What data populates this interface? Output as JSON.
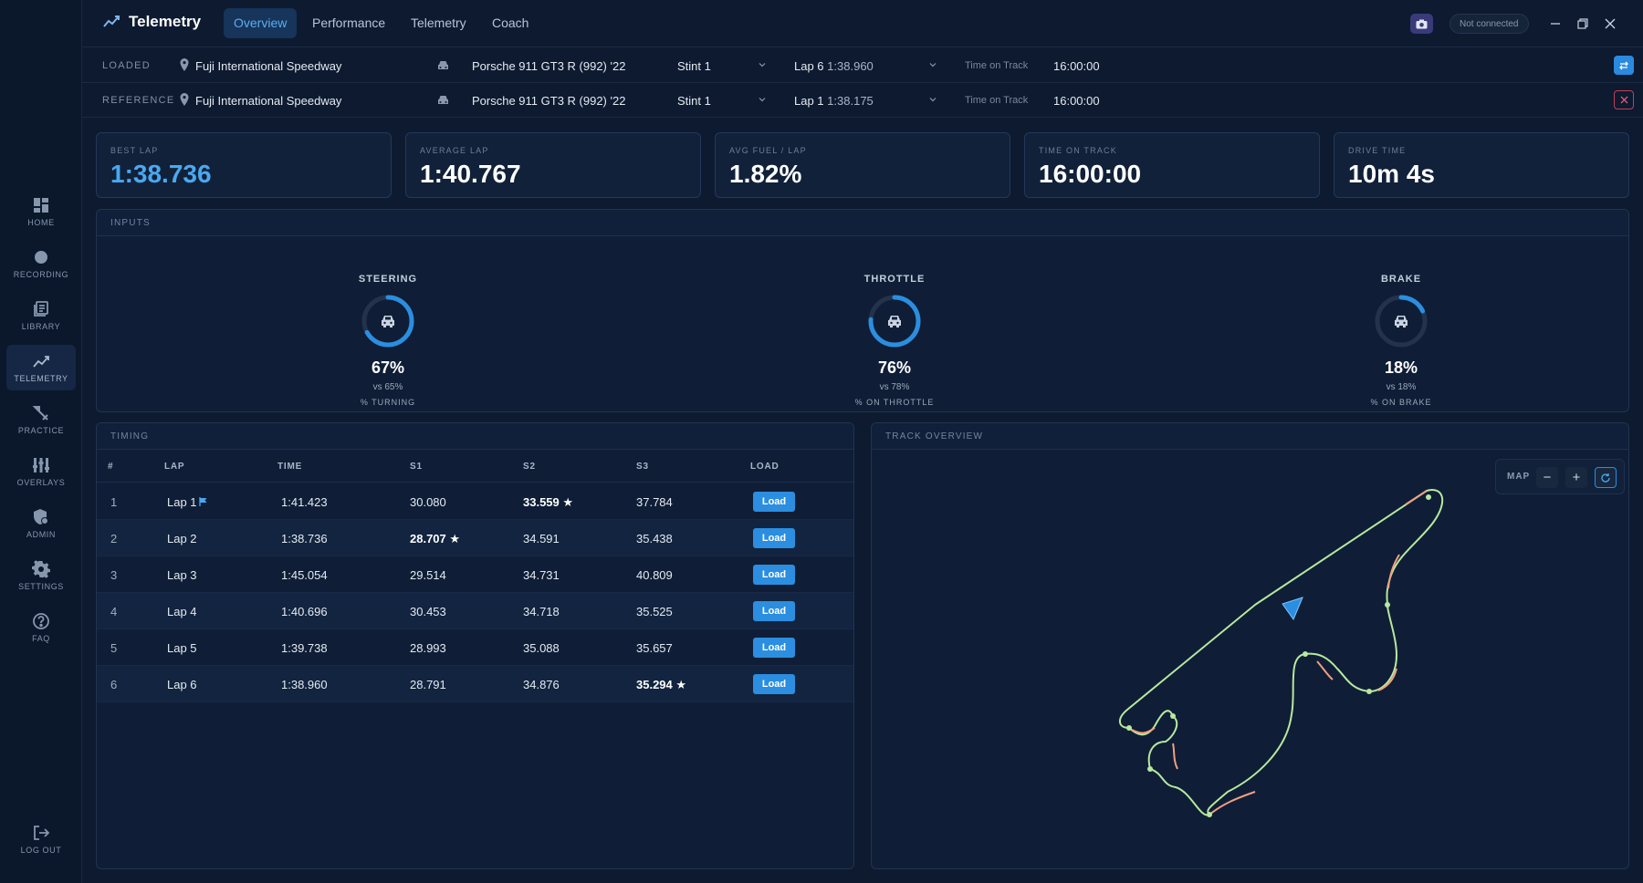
{
  "app": {
    "title": "Telemetry"
  },
  "tabs": [
    {
      "label": "Overview",
      "active": true
    },
    {
      "label": "Performance",
      "active": false
    },
    {
      "label": "Telemetry",
      "active": false
    },
    {
      "label": "Coach",
      "active": false
    }
  ],
  "connection_status": "Not connected",
  "sidebar": [
    {
      "label": "HOME",
      "icon": "grid-icon"
    },
    {
      "label": "RECORDING",
      "icon": "record-dot-icon"
    },
    {
      "label": "LIBRARY",
      "icon": "library-icon"
    },
    {
      "label": "TELEMETRY",
      "icon": "chart-line-icon",
      "active": true
    },
    {
      "label": "PRACTICE",
      "icon": "tools-icon"
    },
    {
      "label": "OVERLAYS",
      "icon": "sliders-icon"
    },
    {
      "label": "ADMIN",
      "icon": "shield-user-icon"
    },
    {
      "label": "SETTINGS",
      "icon": "gear-icon"
    },
    {
      "label": "FAQ",
      "icon": "question-icon"
    },
    {
      "label": "LOG OUT",
      "icon": "logout-icon"
    }
  ],
  "loaded": {
    "label": "LOADED",
    "track": "Fuji International Speedway",
    "car": "Porsche 911 GT3 R (992) '22",
    "stint": "Stint 1",
    "lap": "Lap 6",
    "lap_time": "1:38.960",
    "time_on_track_label": "Time on Track",
    "time_on_track": "16:00:00"
  },
  "reference": {
    "label": "REFERENCE",
    "track": "Fuji International Speedway",
    "car": "Porsche 911 GT3 R (992) '22",
    "stint": "Stint 1",
    "lap": "Lap 1",
    "lap_time": "1:38.175",
    "time_on_track_label": "Time on Track",
    "time_on_track": "16:00:00"
  },
  "stats": [
    {
      "title": "BEST LAP",
      "value": "1:38.736",
      "accent": true
    },
    {
      "title": "AVERAGE LAP",
      "value": "1:40.767"
    },
    {
      "title": "AVG FUEL / LAP",
      "value": "1.82%"
    },
    {
      "title": "TIME ON TRACK",
      "value": "16:00:00"
    },
    {
      "title": "DRIVE TIME",
      "value": "10m 4s"
    }
  ],
  "inputs": {
    "title": "INPUTS",
    "gauges": [
      {
        "title": "STEERING",
        "value": 67,
        "value_text": "67%",
        "vs": "vs 65%",
        "sub": "% TURNING"
      },
      {
        "title": "THROTTLE",
        "value": 76,
        "value_text": "76%",
        "vs": "vs 78%",
        "sub": "% ON THROTTLE"
      },
      {
        "title": "BRAKE",
        "value": 18,
        "value_text": "18%",
        "vs": "vs 18%",
        "sub": "% ON BRAKE"
      }
    ]
  },
  "timing": {
    "title": "TIMING",
    "headers": [
      "#",
      "LAP",
      "TIME",
      "S1",
      "S2",
      "S3",
      "LOAD"
    ],
    "load_label": "Load",
    "rows": [
      {
        "n": "1",
        "lap": "Lap 1",
        "flag": true,
        "time": "1:41.423",
        "s1": "30.080",
        "s2": "33.559 ★",
        "s3": "37.784",
        "best": "s2"
      },
      {
        "n": "2",
        "lap": "Lap 2",
        "flag": false,
        "time": "1:38.736",
        "s1": "28.707 ★",
        "s2": "34.591",
        "s3": "35.438",
        "best": "s1"
      },
      {
        "n": "3",
        "lap": "Lap 3",
        "flag": false,
        "time": "1:45.054",
        "s1": "29.514",
        "s2": "34.731",
        "s3": "40.809",
        "best": ""
      },
      {
        "n": "4",
        "lap": "Lap 4",
        "flag": false,
        "time": "1:40.696",
        "s1": "30.453",
        "s2": "34.718",
        "s3": "35.525",
        "best": ""
      },
      {
        "n": "5",
        "lap": "Lap 5",
        "flag": false,
        "time": "1:39.738",
        "s1": "28.993",
        "s2": "35.088",
        "s3": "35.657",
        "best": ""
      },
      {
        "n": "6",
        "lap": "Lap 6",
        "flag": false,
        "time": "1:38.960",
        "s1": "28.791",
        "s2": "34.876",
        "s3": "35.294 ★",
        "best": "s3"
      }
    ]
  },
  "track_overview": {
    "title": "TRACK OVERVIEW",
    "map_label": "MAP",
    "zoom_out": "−",
    "zoom_in": "+"
  },
  "colors": {
    "accent": "#2b8ee0",
    "track_line": "#b8e8a0",
    "track_brake": "#f0a080"
  }
}
